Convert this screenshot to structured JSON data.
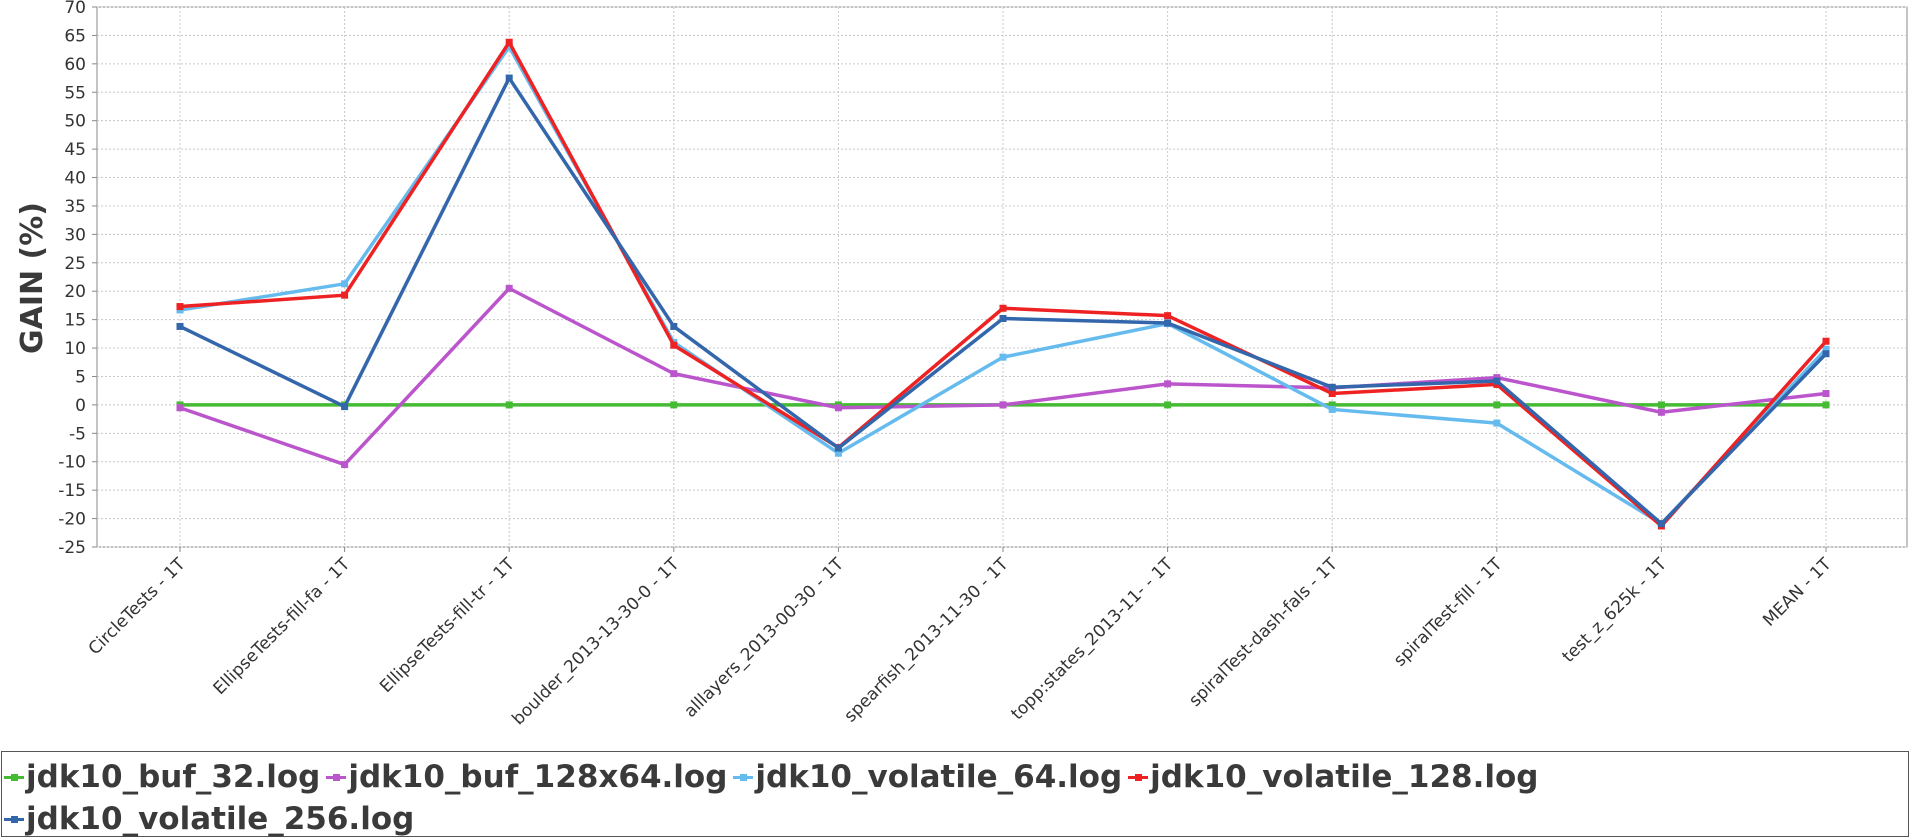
{
  "chart_data": {
    "type": "line",
    "ylabel": "GAIN (%)",
    "ylim": [
      -25,
      70
    ],
    "yticks": [
      70,
      65,
      60,
      55,
      50,
      45,
      40,
      35,
      30,
      25,
      20,
      15,
      10,
      5,
      0,
      -5,
      -10,
      -15,
      -20,
      -25
    ],
    "grid": true,
    "legend_position": "bottom",
    "categories": [
      "CircleTests - 1T",
      "EllipseTests-fill-fa - 1T",
      "EllipseTests-fill-tr - 1T",
      "boulder_2013-13-30-0 - 1T",
      "alllayers_2013-00-30 - 1T",
      "spearfish_2013-11-30 - 1T",
      "topp:states_2013-11- - 1T",
      "spiralTest-dash-fals - 1T",
      "spiralTest-fill - 1T",
      "test_z_625k - 1T",
      "MEAN - 1T"
    ],
    "series": [
      {
        "name": "jdk10_buf_32.log",
        "color": "#44bb33",
        "values": [
          0,
          0,
          0,
          0,
          0,
          0,
          0,
          0,
          0,
          0,
          0
        ]
      },
      {
        "name": "jdk10_buf_128x64.log",
        "color": "#bb55cc",
        "values": [
          -0.5,
          -10.5,
          20.5,
          5.5,
          -0.5,
          0,
          3.7,
          3.0,
          4.8,
          -1.3,
          2.0
        ]
      },
      {
        "name": "jdk10_volatile_64.log",
        "color": "#66bbee",
        "values": [
          16.7,
          21.3,
          63.0,
          11.0,
          -8.5,
          8.4,
          14.3,
          -0.8,
          -3.2,
          -20.9,
          9.8
        ]
      },
      {
        "name": "jdk10_volatile_128.log",
        "color": "#ee2222",
        "values": [
          17.3,
          19.3,
          63.8,
          10.5,
          -7.5,
          17.0,
          15.7,
          2.0,
          3.6,
          -21.3,
          11.2
        ]
      },
      {
        "name": "jdk10_volatile_256.log",
        "color": "#3366aa",
        "values": [
          13.8,
          -0.3,
          57.5,
          13.8,
          -7.6,
          15.2,
          14.4,
          3.1,
          4.2,
          -20.9,
          9.0
        ]
      }
    ]
  }
}
